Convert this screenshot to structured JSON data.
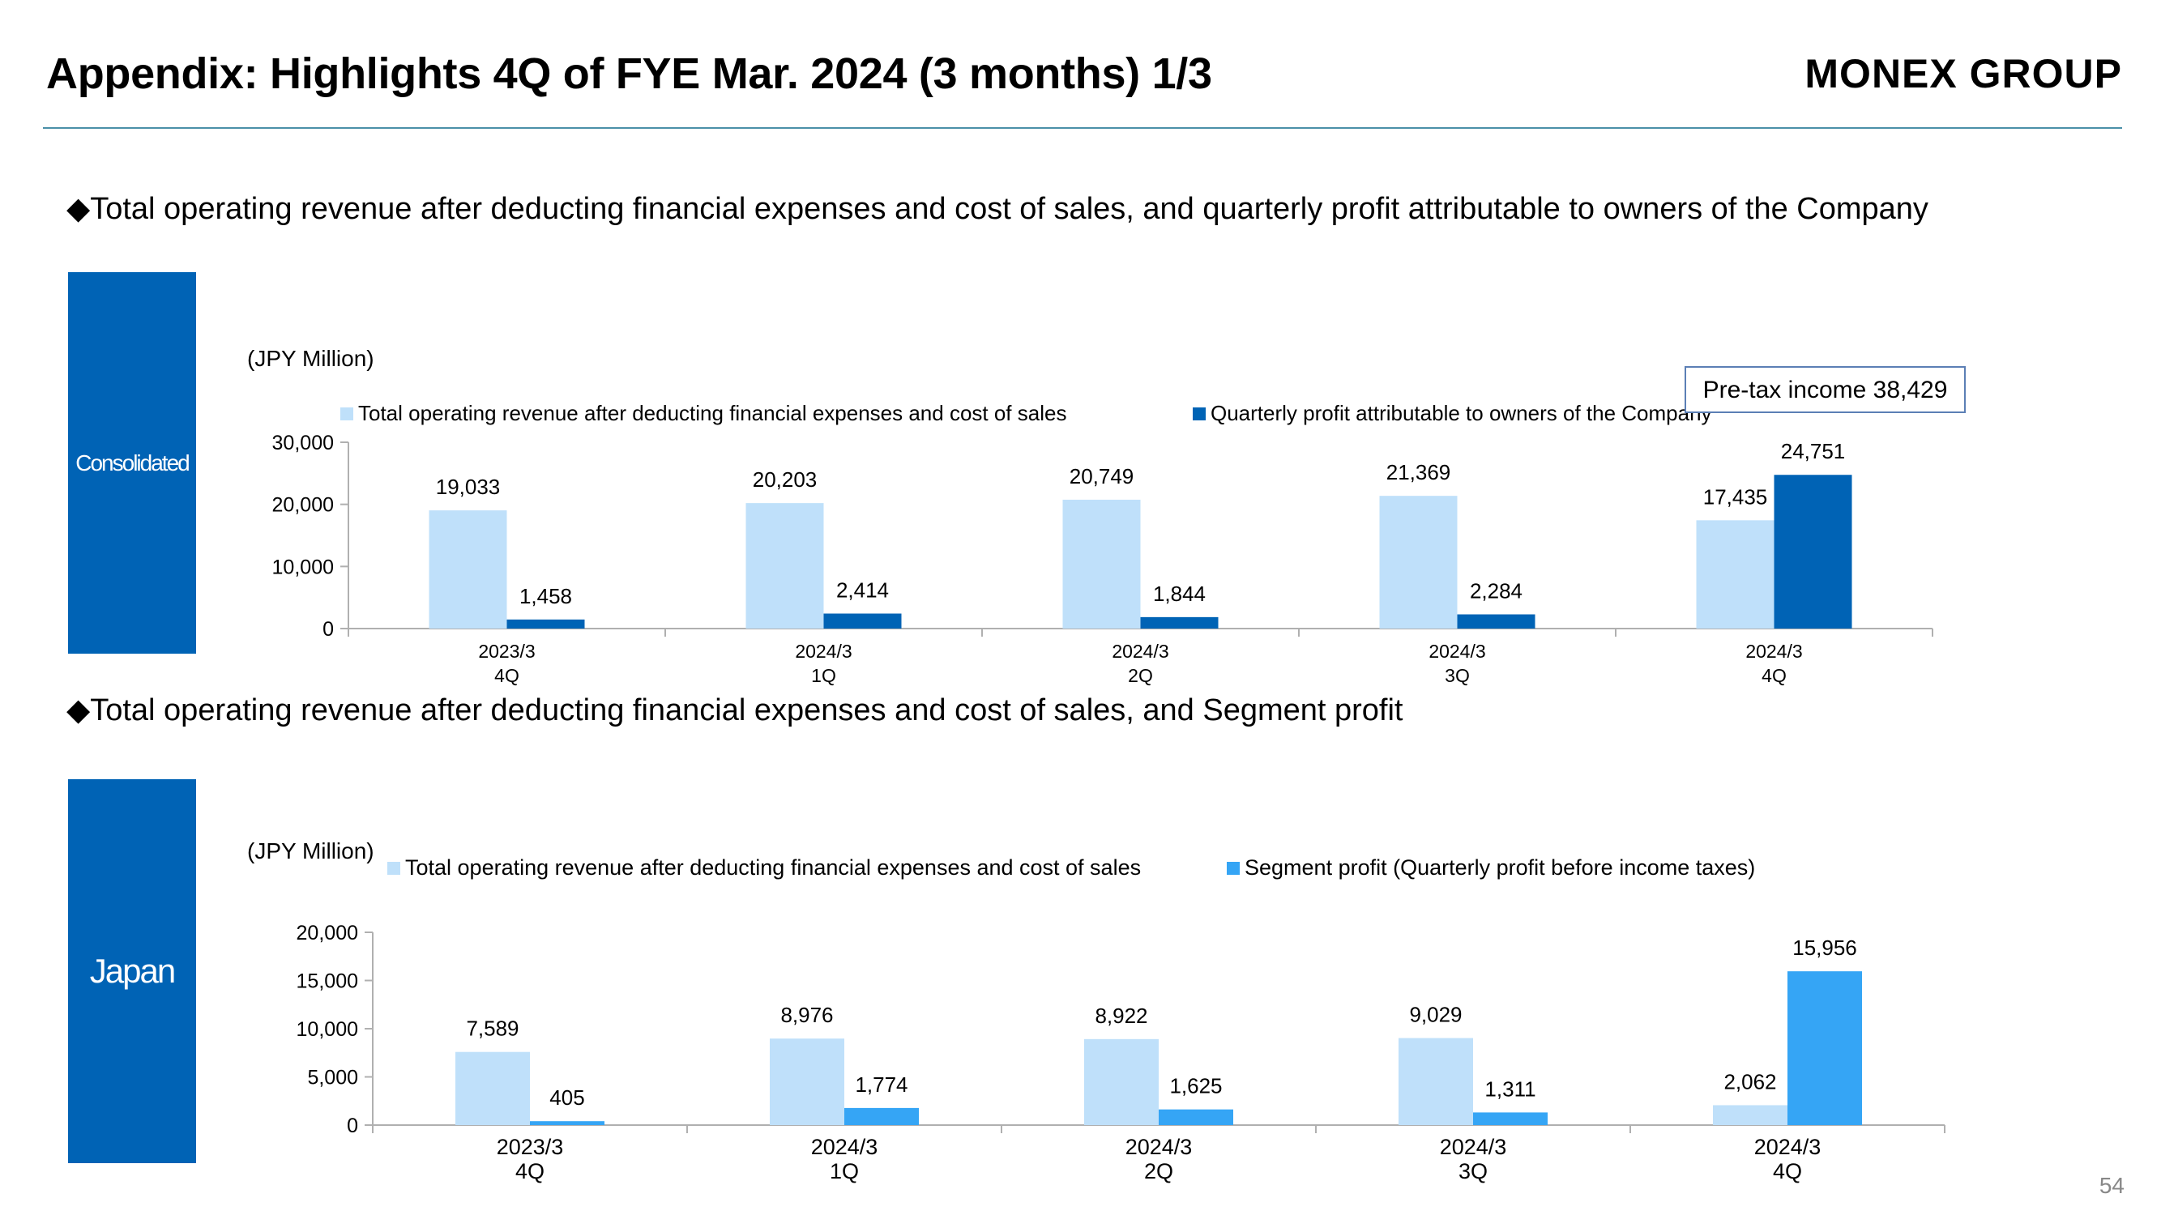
{
  "header": {
    "title": "Appendix: Highlights 4Q of FYE Mar. 2024 (3 months) 1/3",
    "brand": "MONEX GROUP"
  },
  "page_number": "54",
  "sections": [
    {
      "heading": "◆Total operating revenue after deducting financial expenses and cost of sales, and quarterly profit attributable to owners of the Company",
      "tab_label": "Consolidated",
      "unit_label": "(JPY Million)",
      "callout": "Pre-tax income 38,429"
    },
    {
      "heading": "◆Total operating revenue after deducting financial expenses and cost of sales, and Segment profit",
      "tab_label": "Japan",
      "unit_label": "(JPY Million)"
    }
  ],
  "chart_data": [
    {
      "type": "bar",
      "categories": [
        [
          "2023/3",
          "4Q"
        ],
        [
          "2024/3",
          "1Q"
        ],
        [
          "2024/3",
          "2Q"
        ],
        [
          "2024/3",
          "3Q"
        ],
        [
          "2024/3",
          "4Q"
        ]
      ],
      "series": [
        {
          "name": "Total operating revenue after deducting financial expenses and cost of sales",
          "values": [
            19033,
            20203,
            20749,
            21369,
            17435
          ],
          "labels": [
            "19,033",
            "20,203",
            "20,749",
            "21,369",
            "17,435"
          ],
          "color": "#bfe0fa"
        },
        {
          "name": "Quarterly profit attributable to owners of the Company",
          "values": [
            1458,
            2414,
            1844,
            2284,
            24751
          ],
          "labels": [
            "1,458",
            "2,414",
            "1,844",
            "2,284",
            "24,751"
          ],
          "color": "#0063b5"
        }
      ],
      "ylim": [
        0,
        30000
      ],
      "yticks": [
        "0",
        "10,000",
        "20,000",
        "30,000"
      ],
      "ytick_values": [
        0,
        10000,
        20000,
        30000
      ],
      "legend": "top",
      "grid": false
    },
    {
      "type": "bar",
      "categories": [
        [
          "2023/3",
          "4Q"
        ],
        [
          "2024/3",
          "1Q"
        ],
        [
          "2024/3",
          "2Q"
        ],
        [
          "2024/3",
          "3Q"
        ],
        [
          "2024/3",
          "4Q"
        ]
      ],
      "series": [
        {
          "name": "Total operating revenue after deducting financial expenses and cost of sales",
          "values": [
            7589,
            8976,
            8922,
            9029,
            2062
          ],
          "labels": [
            "7,589",
            "8,976",
            "8,922",
            "9,029",
            "2,062"
          ],
          "color": "#bfe0fa"
        },
        {
          "name": "Segment profit (Quarterly profit before income taxes)",
          "values": [
            405,
            1774,
            1625,
            1311,
            15956
          ],
          "labels": [
            "405",
            "1,774",
            "1,625",
            "1,311",
            "15,956"
          ],
          "color": "#35a5f5"
        }
      ],
      "ylim": [
        0,
        20000
      ],
      "yticks": [
        "0",
        "5,000",
        "10,000",
        "15,000",
        "20,000"
      ],
      "ytick_values": [
        0,
        5000,
        10000,
        15000,
        20000
      ],
      "legend": "top",
      "grid": false
    }
  ]
}
